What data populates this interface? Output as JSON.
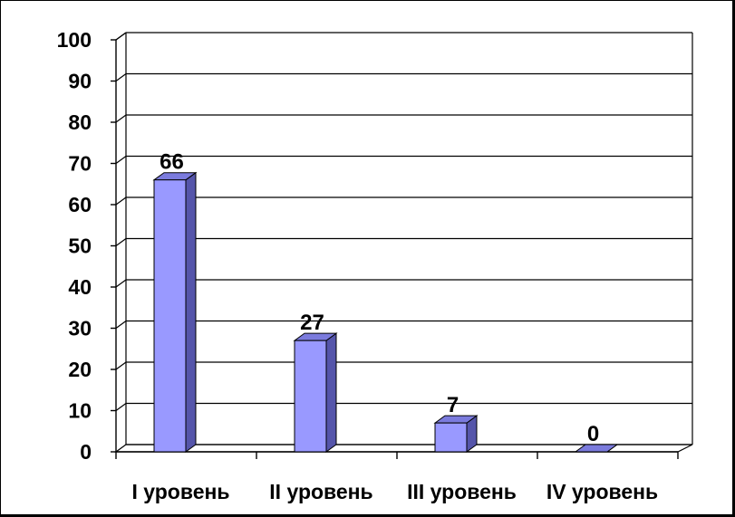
{
  "chart_data": {
    "type": "bar",
    "style": "3d-column",
    "categories": [
      "I уровень",
      "II уровень",
      "III уровень",
      "IV уровень"
    ],
    "values": [
      66,
      27,
      7,
      0
    ],
    "data_labels": [
      "66",
      "27",
      "7",
      "0"
    ],
    "ylim": [
      0,
      100
    ],
    "yticks": [
      0,
      10,
      20,
      30,
      40,
      50,
      60,
      70,
      80,
      90,
      100
    ],
    "ytick_labels": [
      "0",
      "10",
      "20",
      "30",
      "40",
      "50",
      "60",
      "70",
      "80",
      "90",
      "100"
    ],
    "grid": true,
    "legend": "none",
    "colors": {
      "bar_front": "#9999ff",
      "bar_side": "#5555aa",
      "bar_top": "#7b7bdd",
      "grid": "#000000",
      "background": "#ffffff"
    }
  }
}
